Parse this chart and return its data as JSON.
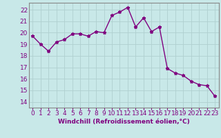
{
  "x": [
    0,
    1,
    2,
    3,
    4,
    5,
    6,
    7,
    8,
    9,
    10,
    11,
    12,
    13,
    14,
    15,
    16,
    17,
    18,
    19,
    20,
    21,
    22,
    23
  ],
  "y": [
    19.7,
    19.0,
    18.4,
    19.2,
    19.4,
    19.9,
    19.9,
    19.7,
    20.1,
    20.0,
    21.5,
    21.8,
    22.2,
    20.5,
    21.3,
    20.1,
    20.5,
    16.9,
    16.5,
    16.3,
    15.8,
    15.5,
    15.4,
    14.5
  ],
  "line_color": "#800080",
  "marker": "*",
  "marker_size": 3.5,
  "bg_color": "#c8e8e8",
  "grid_color": "#b0d0d0",
  "ylabel_ticks": [
    14,
    15,
    16,
    17,
    18,
    19,
    20,
    21,
    22
  ],
  "ylim": [
    13.5,
    22.6
  ],
  "xlim": [
    -0.5,
    23.5
  ],
  "xlabel": "Windchill (Refroidissement éolien,°C)",
  "xlabel_fontsize": 6.5,
  "tick_fontsize": 6.5,
  "line_width": 1.0
}
